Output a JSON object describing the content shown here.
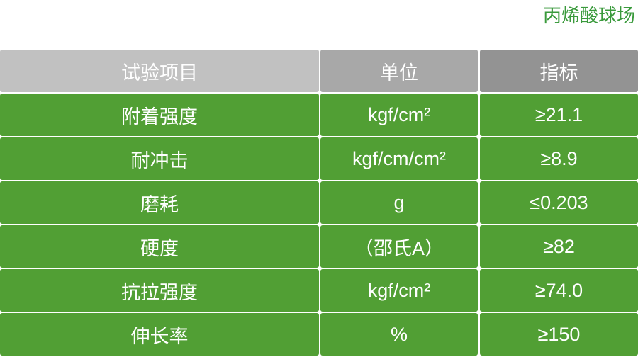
{
  "title": "丙烯酸球场",
  "colors": {
    "header1": "#c1c1c1",
    "header2": "#a8a8a8",
    "header3": "#939393",
    "row": "#519f34",
    "title": "#3a9a3c"
  },
  "table": {
    "headers": [
      "试验项目",
      "单位",
      "指标"
    ],
    "rows": [
      {
        "item": "附着强度",
        "unit": "kgf/cm²",
        "value": "≥21.1"
      },
      {
        "item": "耐冲击",
        "unit": "kgf/cm/cm²",
        "value": "≥8.9"
      },
      {
        "item": "磨耗",
        "unit": "g",
        "value": "≤0.203"
      },
      {
        "item": "硬度",
        "unit": "（邵氏A）",
        "value": "≥82"
      },
      {
        "item": "抗拉强度",
        "unit": "kgf/cm²",
        "value": "≥74.0"
      },
      {
        "item": "伸长率",
        "unit": "%",
        "value": "≥150"
      }
    ]
  }
}
